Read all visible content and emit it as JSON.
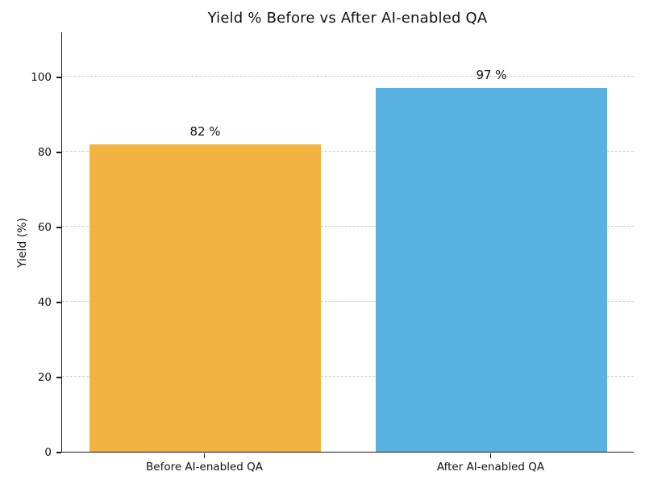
{
  "chart_data": {
    "type": "bar",
    "title": "Yield % Before vs After AI-enabled QA",
    "ylabel": "Yield (%)",
    "xlabel": "",
    "categories": [
      "Before AI-enabled QA",
      "After AI-enabled QA"
    ],
    "values": [
      82,
      97
    ],
    "bar_labels": [
      "82 %",
      "97 %"
    ],
    "bar_colors": [
      "#F2B341",
      "#58B1E0"
    ],
    "ylim": [
      0,
      112
    ],
    "yticks": [
      0,
      20,
      40,
      60,
      80,
      100
    ],
    "grid": {
      "axis": "y",
      "style": "dashed",
      "color": "#CCCCCC"
    },
    "legend_position": "none",
    "background_color": "#FFFFFF",
    "text_color": "#111111",
    "spines": [
      "left",
      "bottom"
    ]
  }
}
